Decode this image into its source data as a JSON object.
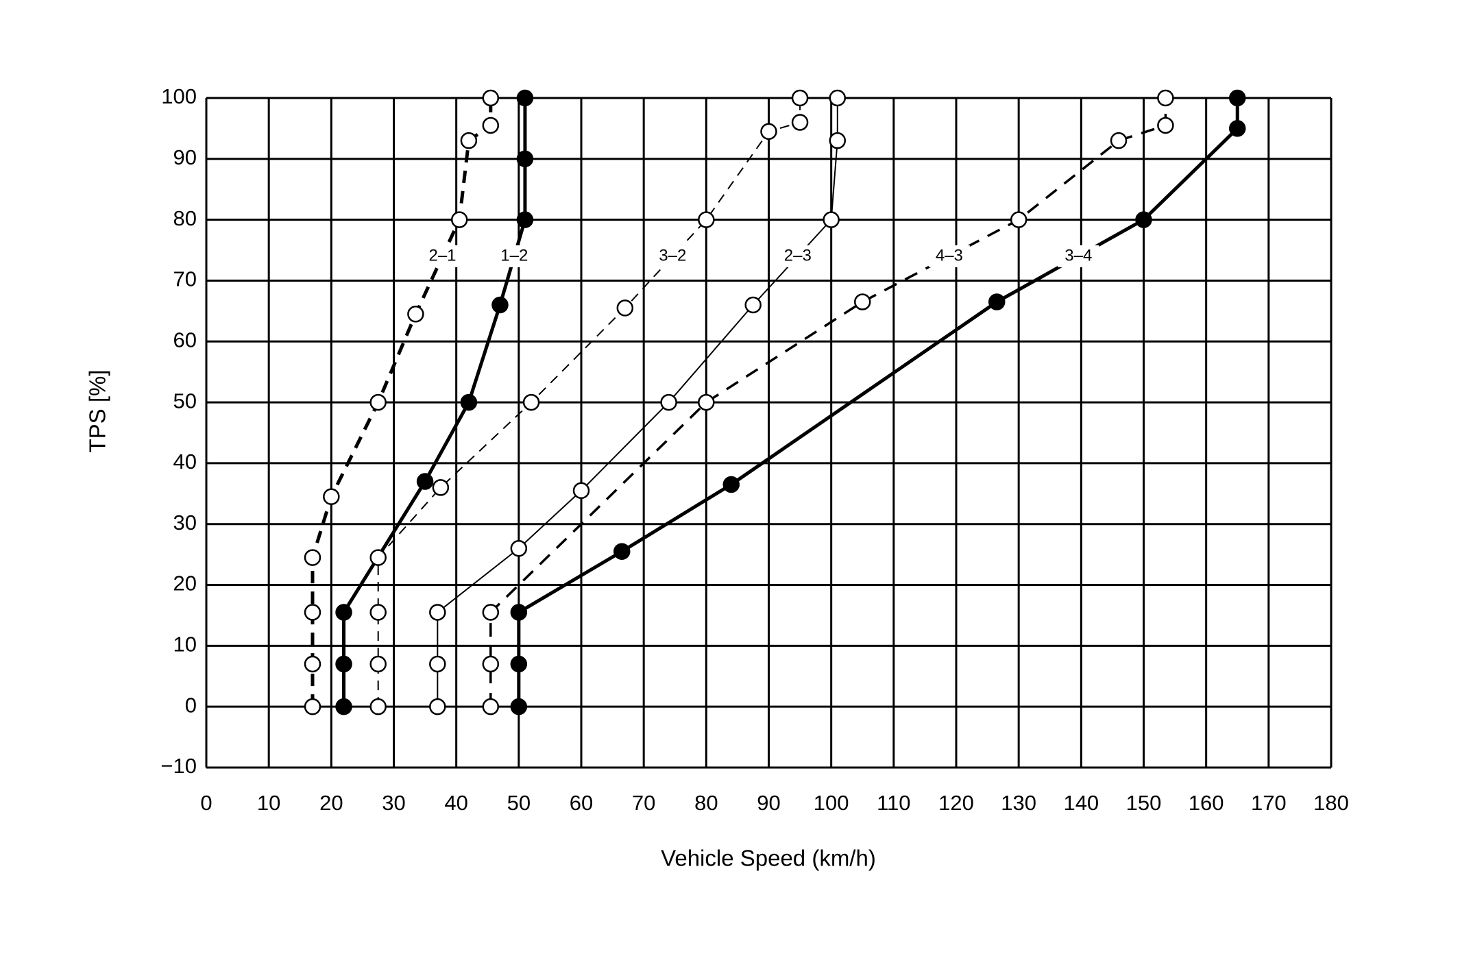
{
  "chart_data": {
    "type": "line",
    "x_label": "Vehicle Speed (km/h)",
    "y_label": "TPS [%]",
    "xlim": [
      0,
      180
    ],
    "ylim": [
      -10,
      100
    ],
    "xticks": [
      0,
      10,
      20,
      30,
      40,
      50,
      60,
      70,
      80,
      90,
      100,
      110,
      120,
      130,
      140,
      150,
      160,
      170,
      180
    ],
    "yticks": [
      {
        "value": -10,
        "label": "−10"
      },
      0,
      10,
      20,
      30,
      40,
      50,
      60,
      70,
      80,
      90,
      100
    ],
    "grid": true,
    "series": [
      {
        "name": "2–1",
        "color": "#000000",
        "marker": "open",
        "line_style": "dashed",
        "line_weight": "heavy",
        "x": [
          17,
          17,
          17,
          17,
          20,
          27.5,
          33.5,
          40.5,
          42,
          45.5,
          45.5
        ],
        "values": [
          0,
          7,
          15.5,
          24.5,
          34.5,
          50,
          64.5,
          80,
          93,
          95.5,
          100
        ]
      },
      {
        "name": "1–2",
        "color": "#000000",
        "marker": "filled",
        "line_style": "solid",
        "line_weight": "heavy",
        "x": [
          22,
          22,
          22,
          35,
          42,
          47,
          51,
          51,
          51
        ],
        "values": [
          0,
          7,
          15.5,
          37,
          50,
          66,
          80,
          90,
          100
        ]
      },
      {
        "name": "3–2",
        "color": "#000000",
        "marker": "open",
        "line_style": "dashed",
        "line_weight": "thin",
        "x": [
          27.5,
          27.5,
          27.5,
          27.5,
          37.5,
          52,
          67,
          80,
          90,
          95,
          95
        ],
        "values": [
          0,
          7,
          15.5,
          24.5,
          36,
          50,
          65.5,
          80,
          94.5,
          96,
          100
        ]
      },
      {
        "name": "2–3",
        "color": "#000000",
        "marker": "open",
        "line_style": "solid",
        "line_weight": "thin",
        "x": [
          37,
          37,
          37,
          50,
          60,
          74,
          87.5,
          100,
          101,
          101
        ],
        "values": [
          0,
          7,
          15.5,
          26,
          35.5,
          50,
          66,
          80,
          93,
          100
        ]
      },
      {
        "name": "4–3",
        "color": "#000000",
        "marker": "open",
        "line_style": "dashed",
        "line_weight": "medium",
        "x": [
          45.5,
          45.5,
          45.5,
          80,
          105,
          130,
          146,
          153.5,
          153.5
        ],
        "values": [
          0,
          7,
          15.5,
          50,
          66.5,
          80,
          93,
          95.5,
          100
        ]
      },
      {
        "name": "3–4",
        "color": "#000000",
        "marker": "filled",
        "line_style": "solid",
        "line_weight": "heavy",
        "x": [
          50,
          50,
          50,
          66.5,
          84,
          126.5,
          150,
          165,
          165
        ],
        "values": [
          0,
          7,
          15.5,
          25.5,
          36.5,
          66.5,
          80,
          95,
          100
        ]
      }
    ]
  }
}
